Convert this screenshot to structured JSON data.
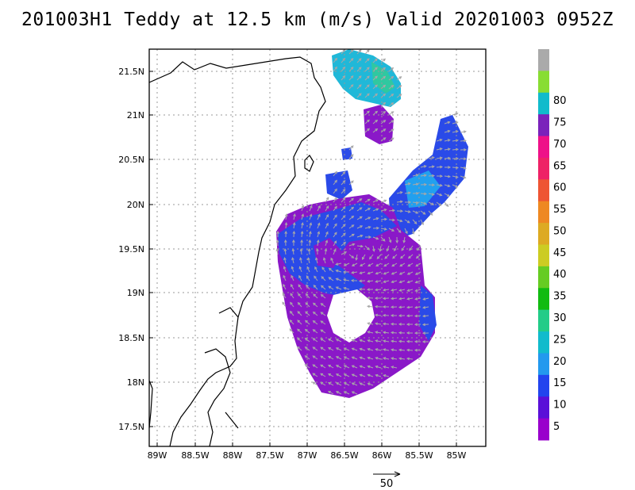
{
  "title": "201003H1 Teddy at 12.5 km (m/s) Valid 20201003 0952Z",
  "lat_ticks": [
    "21.5N",
    "21N",
    "20.5N",
    "20N",
    "19.5N",
    "19N",
    "18.5N",
    "18N",
    "17.5N"
  ],
  "lon_ticks": [
    "89W",
    "88.5W",
    "88W",
    "87.5W",
    "87W",
    "86.5W",
    "86W",
    "85.5W",
    "85W"
  ],
  "colorbar": {
    "labels": [
      "5",
      "10",
      "15",
      "20",
      "25",
      "30",
      "35",
      "40",
      "45",
      "50",
      "55",
      "60",
      "65",
      "70",
      "75",
      "80"
    ],
    "colors": [
      "#9900cc",
      "#5a10d8",
      "#2244ee",
      "#2299ee",
      "#11bbcc",
      "#22cc88",
      "#11bb11",
      "#66cc22",
      "#cccc22",
      "#ddaa22",
      "#ee8822",
      "#ee5533",
      "#ee2266",
      "#ee1188",
      "#7a22bb",
      "#11bbcc",
      "#88dd33",
      "#aaaaaa"
    ]
  },
  "reference_vector_label": "50"
}
